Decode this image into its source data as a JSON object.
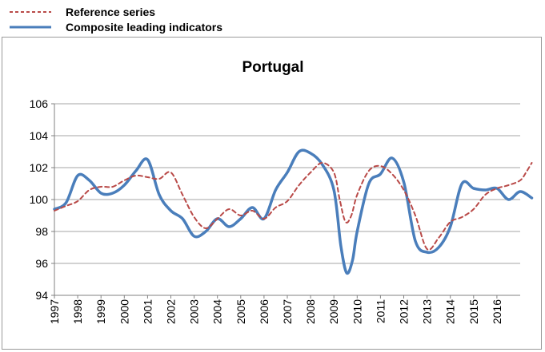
{
  "legend": {
    "items": [
      {
        "label": "Reference series",
        "color": "#b94a48",
        "style": "dashed"
      },
      {
        "label": "Composite leading indicators",
        "color": "#4a7ebb",
        "style": "solid"
      }
    ]
  },
  "chart_data": {
    "type": "line",
    "title": "Portugal",
    "xlabel": "",
    "ylabel": "",
    "ylim": [
      94,
      106
    ],
    "y_ticks": [
      94,
      96,
      98,
      100,
      102,
      104,
      106
    ],
    "x_range": [
      1997.0,
      2017.0
    ],
    "x_ticks": [
      "1997",
      "1998",
      "1999",
      "2000",
      "2001",
      "2002",
      "2003",
      "2004",
      "2005",
      "2006",
      "2007",
      "2008",
      "2009",
      "2010",
      "2011",
      "2012",
      "2013",
      "2014",
      "2015",
      "2016"
    ],
    "grid": "horizontal",
    "legend_position": "top-left, outside plot",
    "series": [
      {
        "name": "Reference series",
        "color": "#b94a48",
        "style": "dashed",
        "points": [
          [
            1997.0,
            99.3
          ],
          [
            1997.5,
            99.6
          ],
          [
            1998.0,
            99.9
          ],
          [
            1998.5,
            100.6
          ],
          [
            1999.0,
            100.8
          ],
          [
            1999.5,
            100.8
          ],
          [
            2000.0,
            101.2
          ],
          [
            2000.5,
            101.5
          ],
          [
            2001.0,
            101.4
          ],
          [
            2001.5,
            101.3
          ],
          [
            2002.0,
            101.7
          ],
          [
            2002.5,
            100.3
          ],
          [
            2003.0,
            98.9
          ],
          [
            2003.5,
            98.2
          ],
          [
            2004.0,
            98.8
          ],
          [
            2004.5,
            99.4
          ],
          [
            2005.0,
            99.0
          ],
          [
            2005.5,
            99.3
          ],
          [
            2006.0,
            98.8
          ],
          [
            2006.5,
            99.5
          ],
          [
            2007.0,
            99.9
          ],
          [
            2007.5,
            100.9
          ],
          [
            2008.0,
            101.7
          ],
          [
            2008.5,
            102.3
          ],
          [
            2009.0,
            101.7
          ],
          [
            2009.25,
            100.0
          ],
          [
            2009.5,
            98.6
          ],
          [
            2009.75,
            99.0
          ],
          [
            2010.0,
            100.3
          ],
          [
            2010.5,
            101.8
          ],
          [
            2011.0,
            102.1
          ],
          [
            2011.5,
            101.6
          ],
          [
            2012.0,
            100.6
          ],
          [
            2012.5,
            99.0
          ],
          [
            2013.0,
            96.9
          ],
          [
            2013.5,
            97.6
          ],
          [
            2014.0,
            98.6
          ],
          [
            2014.5,
            98.9
          ],
          [
            2015.0,
            99.4
          ],
          [
            2015.5,
            100.3
          ],
          [
            2016.0,
            100.7
          ],
          [
            2016.5,
            100.9
          ],
          [
            2017.0,
            101.2
          ],
          [
            2017.25,
            101.7
          ],
          [
            2017.5,
            102.3
          ]
        ]
      },
      {
        "name": "Composite leading indicators",
        "color": "#4a7ebb",
        "style": "solid",
        "points": [
          [
            1997.0,
            99.4
          ],
          [
            1997.5,
            99.8
          ],
          [
            1998.0,
            101.5
          ],
          [
            1998.5,
            101.2
          ],
          [
            1999.0,
            100.4
          ],
          [
            1999.5,
            100.4
          ],
          [
            2000.0,
            100.9
          ],
          [
            2000.5,
            101.8
          ],
          [
            2001.0,
            102.5
          ],
          [
            2001.5,
            100.3
          ],
          [
            2002.0,
            99.3
          ],
          [
            2002.5,
            98.8
          ],
          [
            2003.0,
            97.7
          ],
          [
            2003.5,
            98.0
          ],
          [
            2004.0,
            98.8
          ],
          [
            2004.5,
            98.3
          ],
          [
            2005.0,
            98.8
          ],
          [
            2005.5,
            99.5
          ],
          [
            2006.0,
            98.8
          ],
          [
            2006.5,
            100.6
          ],
          [
            2007.0,
            101.7
          ],
          [
            2007.5,
            103.0
          ],
          [
            2008.0,
            102.9
          ],
          [
            2008.5,
            102.2
          ],
          [
            2009.0,
            100.6
          ],
          [
            2009.3,
            97.1
          ],
          [
            2009.55,
            95.4
          ],
          [
            2009.8,
            96.2
          ],
          [
            2010.0,
            98.0
          ],
          [
            2010.5,
            101.0
          ],
          [
            2011.0,
            101.6
          ],
          [
            2011.5,
            102.6
          ],
          [
            2012.0,
            101.1
          ],
          [
            2012.5,
            97.4
          ],
          [
            2013.0,
            96.7
          ],
          [
            2013.5,
            97.0
          ],
          [
            2014.0,
            98.3
          ],
          [
            2014.5,
            101.0
          ],
          [
            2015.0,
            100.7
          ],
          [
            2015.5,
            100.6
          ],
          [
            2016.0,
            100.7
          ],
          [
            2016.5,
            100.0
          ],
          [
            2017.0,
            100.5
          ],
          [
            2017.5,
            100.1
          ]
        ]
      }
    ]
  }
}
